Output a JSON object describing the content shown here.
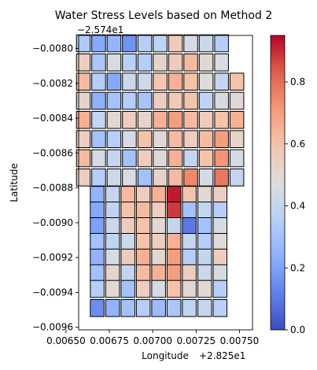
{
  "chart_data": {
    "type": "heatmap",
    "title": "Water Stress Levels based on Method 2",
    "xlabel": "Longitude",
    "ylabel": "Latitude",
    "x_offset_label": "+2.825e1",
    "y_offset_label": "−2.574e1",
    "x_ticks": [
      0.0065,
      0.00675,
      0.007,
      0.00725,
      0.0075
    ],
    "x_tick_labels": [
      "0.00650",
      "0.00675",
      "0.00700",
      "0.00725",
      "0.00750"
    ],
    "y_ticks": [
      -0.008,
      -0.0082,
      -0.0084,
      -0.0086,
      -0.0088,
      -0.009,
      -0.0092,
      -0.0094,
      -0.0096
    ],
    "y_tick_labels": [
      "−0.0080",
      "−0.0082",
      "−0.0084",
      "−0.0086",
      "−0.0088",
      "−0.0090",
      "−0.0092",
      "−0.0094",
      "−0.0096"
    ],
    "xlim": [
      0.006573,
      0.007575
    ],
    "ylim": [
      -0.009615,
      -0.007925
    ],
    "colorbar": {
      "colormap": "coolwarm",
      "range": [
        0,
        0.95
      ],
      "ticks": [
        0,
        0.2,
        0.4,
        0.6,
        0.8
      ],
      "tick_labels": [
        "0.0",
        "0.2",
        "0.4",
        "0.6",
        "0.8"
      ]
    },
    "grid": false,
    "rows": [
      {
        "y": -0.00797,
        "x0": 0.0066,
        "values": [
          0.33,
          0.22,
          0.26,
          0.16,
          0.35,
          0.38,
          0.56,
          0.45,
          0.42,
          0.35
        ]
      },
      {
        "y": -0.00808,
        "x0": 0.0066,
        "values": [
          0.55,
          0.32,
          0.45,
          0.36,
          0.35,
          0.52,
          0.56,
          0.62,
          0.5,
          0.46
        ]
      },
      {
        "y": -0.00819,
        "x0": 0.0066,
        "values": [
          0.62,
          0.35,
          0.22,
          0.42,
          0.43,
          0.59,
          0.65,
          0.6,
          0.48,
          0.4,
          0.6
        ]
      },
      {
        "y": -0.0083,
        "x0": 0.0066,
        "values": [
          0.52,
          0.24,
          0.3,
          0.35,
          0.31,
          0.55,
          0.57,
          0.6,
          0.38,
          0.45,
          0.5
        ]
      },
      {
        "y": -0.00841,
        "x0": 0.0066,
        "values": [
          0.65,
          0.4,
          0.5,
          0.55,
          0.52,
          0.65,
          0.7,
          0.62,
          0.56,
          0.6,
          0.65
        ]
      },
      {
        "y": -0.00852,
        "x0": 0.0066,
        "values": [
          0.55,
          0.3,
          0.35,
          0.45,
          0.6,
          0.5,
          0.62,
          0.55,
          0.62,
          0.7,
          0.52
        ]
      },
      {
        "y": -0.00863,
        "x0": 0.0066,
        "values": [
          0.62,
          0.45,
          0.4,
          0.3,
          0.55,
          0.5,
          0.65,
          0.4,
          0.6,
          0.72,
          0.45
        ]
      },
      {
        "y": -0.00874,
        "x0": 0.0066,
        "values": [
          0.55,
          0.35,
          0.42,
          0.46,
          0.3,
          0.52,
          0.62,
          0.75,
          0.45,
          0.78,
          0.4
        ]
      },
      {
        "y": -0.00884,
        "x0": 0.00668,
        "values": [
          0.25,
          0.4,
          0.62,
          0.55,
          0.65,
          0.92,
          0.6,
          0.5,
          0.55
        ]
      },
      {
        "y": -0.00893,
        "x0": 0.00668,
        "values": [
          0.22,
          0.38,
          0.6,
          0.62,
          0.55,
          0.88,
          0.3,
          0.4,
          0.35
        ]
      },
      {
        "y": -0.00902,
        "x0": 0.00668,
        "values": [
          0.2,
          0.42,
          0.55,
          0.6,
          0.5,
          0.4,
          0.1,
          0.3,
          0.45
        ]
      },
      {
        "y": -0.00911,
        "x0": 0.00668,
        "values": [
          0.3,
          0.38,
          0.42,
          0.6,
          0.55,
          0.65,
          0.4,
          0.35,
          0.48
        ]
      },
      {
        "y": -0.0092,
        "x0": 0.00668,
        "values": [
          0.25,
          0.45,
          0.55,
          0.65,
          0.5,
          0.7,
          0.35,
          0.4,
          0.55
        ]
      },
      {
        "y": -0.00929,
        "x0": 0.00668,
        "values": [
          0.3,
          0.52,
          0.4,
          0.62,
          0.65,
          0.7,
          0.55,
          0.42,
          0.45
        ]
      },
      {
        "y": -0.00938,
        "x0": 0.00668,
        "values": [
          0.35,
          0.5,
          0.3,
          0.55,
          0.45,
          0.6,
          0.5,
          0.5,
          0.35
        ]
      },
      {
        "y": -0.00949,
        "x0": 0.00668,
        "values": [
          0.15,
          0.25,
          0.3,
          0.35,
          0.28,
          0.32,
          0.38,
          0.4,
          0.36
        ]
      }
    ]
  }
}
